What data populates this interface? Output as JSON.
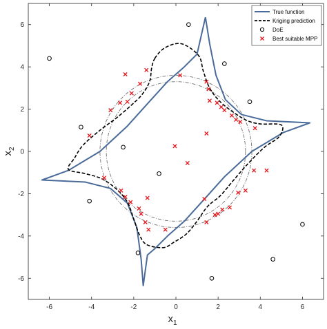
{
  "chart_data": {
    "type": "scatter",
    "xlabel": "x",
    "xlabel_sub": "1",
    "ylabel": "x",
    "ylabel_sub": "2",
    "xlim": [
      -7,
      7
    ],
    "ylim": [
      -7,
      7
    ],
    "xticks": [
      "-6",
      "-4",
      "-2",
      "0",
      "2",
      "4",
      "6"
    ],
    "yticks": [
      "6",
      "4",
      "2",
      "0",
      "-2",
      "-4",
      "-6"
    ],
    "grid": false,
    "legend_position": "top-right",
    "legend": [
      {
        "label": "True function",
        "marker": "line",
        "color": "#4a6b99"
      },
      {
        "label": "Kriging prediction",
        "marker": "dashed",
        "color": "#000000"
      },
      {
        "label": "DoE",
        "marker": "circle",
        "color": "#000000"
      },
      {
        "label": "Best suitable MPP",
        "marker": "x",
        "color": "#e8141a"
      }
    ],
    "true_function": [
      [
        1.4,
        6.35
      ],
      [
        1.6,
        5.1
      ],
      [
        1.9,
        3.6
      ],
      [
        2.35,
        2.45
      ],
      [
        3.1,
        1.75
      ],
      [
        4.3,
        1.45
      ],
      [
        6.35,
        1.35
      ],
      [
        5.1,
        0.9
      ],
      [
        3.6,
        0.0
      ],
      [
        2.3,
        -1.2
      ],
      [
        1.4,
        -2.2
      ],
      [
        0.4,
        -3.3
      ],
      [
        -0.4,
        -4.0
      ],
      [
        -1.0,
        -4.6
      ],
      [
        -1.35,
        -4.9
      ],
      [
        -1.55,
        -6.35
      ],
      [
        -1.65,
        -5.1
      ],
      [
        -1.85,
        -3.6
      ],
      [
        -2.3,
        -2.45
      ],
      [
        -3.1,
        -1.75
      ],
      [
        -4.3,
        -1.45
      ],
      [
        -6.35,
        -1.35
      ],
      [
        -5.1,
        -0.9
      ],
      [
        -3.6,
        0.0
      ],
      [
        -2.3,
        1.2
      ],
      [
        -1.4,
        2.2
      ],
      [
        -0.4,
        3.3
      ],
      [
        0.4,
        4.0
      ],
      [
        1.0,
        4.6
      ],
      [
        1.4,
        6.35
      ]
    ],
    "kriging_prediction": [
      [
        -1.0,
        4.4
      ],
      [
        -0.6,
        4.85
      ],
      [
        0.0,
        5.1
      ],
      [
        0.5,
        5.0
      ],
      [
        1.1,
        4.5
      ],
      [
        1.3,
        3.8
      ],
      [
        1.6,
        3.0
      ],
      [
        2.1,
        2.35
      ],
      [
        2.8,
        1.8
      ],
      [
        3.4,
        1.45
      ],
      [
        4.0,
        1.3
      ],
      [
        5.0,
        1.25
      ],
      [
        4.9,
        0.7
      ],
      [
        4.2,
        0.2
      ],
      [
        3.4,
        -0.6
      ],
      [
        2.7,
        -1.4
      ],
      [
        2.1,
        -2.1
      ],
      [
        1.5,
        -2.6
      ],
      [
        1.0,
        -3.3
      ],
      [
        0.5,
        -3.9
      ],
      [
        -0.1,
        -4.3
      ],
      [
        -0.6,
        -4.55
      ],
      [
        -1.4,
        -4.4
      ],
      [
        -1.75,
        -3.9
      ],
      [
        -2.0,
        -3.2
      ],
      [
        -2.3,
        -2.4
      ],
      [
        -2.8,
        -1.8
      ],
      [
        -3.5,
        -1.3
      ],
      [
        -4.3,
        -1.05
      ],
      [
        -5.1,
        -0.85
      ],
      [
        -4.8,
        -0.3
      ],
      [
        -4.4,
        0.3
      ],
      [
        -3.6,
        1.0
      ],
      [
        -2.8,
        1.6
      ],
      [
        -2.1,
        2.2
      ],
      [
        -1.6,
        2.7
      ],
      [
        -1.25,
        3.3
      ],
      [
        -1.15,
        3.95
      ],
      [
        -1.0,
        4.4
      ]
    ],
    "beta_circles": [
      {
        "radius": 3.6
      },
      {
        "radius": 3.3
      }
    ],
    "doe": [
      [
        -6.0,
        4.4
      ],
      [
        -4.5,
        1.15
      ],
      [
        -4.1,
        -2.35
      ],
      [
        -2.5,
        0.2
      ],
      [
        -0.8,
        -1.05
      ],
      [
        -1.8,
        -4.8
      ],
      [
        0.6,
        6.0
      ],
      [
        2.3,
        4.15
      ],
      [
        3.5,
        2.35
      ],
      [
        1.7,
        -6.0
      ],
      [
        4.6,
        -5.1
      ],
      [
        6.0,
        -3.45
      ]
    ],
    "mpp": [
      [
        -2.4,
        3.65
      ],
      [
        -1.4,
        3.85
      ],
      [
        -1.7,
        3.2
      ],
      [
        -2.1,
        2.75
      ],
      [
        -2.3,
        2.35
      ],
      [
        -2.65,
        2.3
      ],
      [
        -3.1,
        1.95
      ],
      [
        -4.1,
        0.75
      ],
      [
        -3.4,
        -1.25
      ],
      [
        -2.6,
        -1.85
      ],
      [
        -2.4,
        -2.15
      ],
      [
        -2.15,
        -2.4
      ],
      [
        -1.75,
        -2.7
      ],
      [
        -1.65,
        -2.95
      ],
      [
        -1.45,
        -3.35
      ],
      [
        -1.3,
        -3.7
      ],
      [
        -0.5,
        -3.7
      ],
      [
        -1.35,
        -2.2
      ],
      [
        0.2,
        3.6
      ],
      [
        1.45,
        3.3
      ],
      [
        1.55,
        2.95
      ],
      [
        1.6,
        2.4
      ],
      [
        1.95,
        2.3
      ],
      [
        2.15,
        2.1
      ],
      [
        2.3,
        1.95
      ],
      [
        2.65,
        1.7
      ],
      [
        2.85,
        1.5
      ],
      [
        3.05,
        1.4
      ],
      [
        3.75,
        1.1
      ],
      [
        4.3,
        -0.9
      ],
      [
        3.7,
        -0.9
      ],
      [
        3.3,
        -1.85
      ],
      [
        2.95,
        -1.95
      ],
      [
        2.55,
        -2.65
      ],
      [
        2.2,
        -2.75
      ],
      [
        2.0,
        -2.95
      ],
      [
        1.85,
        -3.0
      ],
      [
        1.45,
        -3.35
      ],
      [
        -0.05,
        0.25
      ],
      [
        1.45,
        0.85
      ],
      [
        0.55,
        -0.55
      ],
      [
        1.35,
        -2.25
      ]
    ]
  }
}
